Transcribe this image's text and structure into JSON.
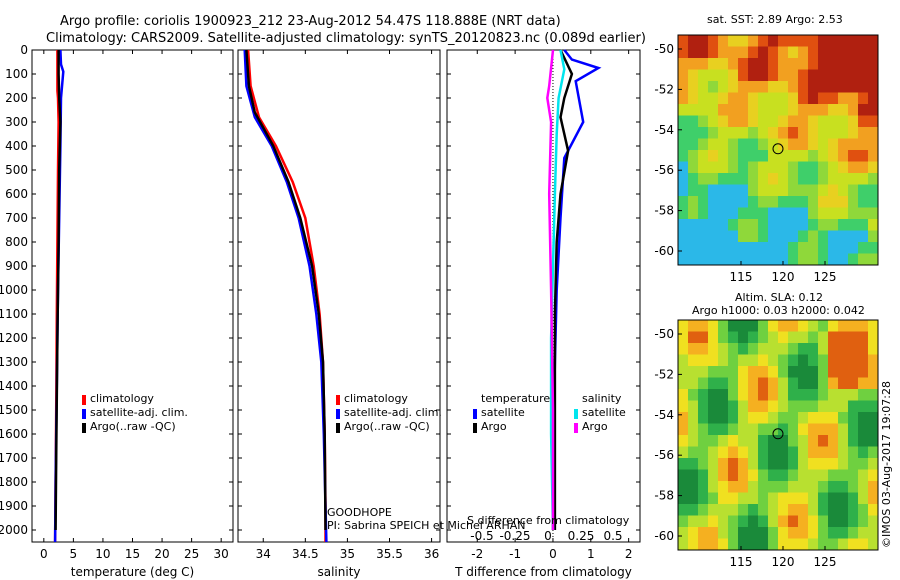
{
  "header": {
    "title_line1": "Argo profile: coriolis 1900923_212 23-Aug-2012 54.47S 118.888E (NRT data)",
    "title_line2": "Climatology: CARS2009. Satellite-adjusted climatology: synTS_20120823.nc (0.089d earlier)"
  },
  "maps": {
    "sst_title": "sat. SST: 2.89 Argo: 2.53",
    "sla_title1": "Altim. SLA: 0.12",
    "sla_title2": "Argo h1000: 0.03 h2000: 0.042",
    "credit": "©IMOS 03-Aug-2017 19:07:28",
    "lat_ticks": [
      "-50",
      "-52",
      "-54",
      "-56",
      "-58",
      "-60"
    ],
    "lon_ticks": [
      "115",
      "120",
      "125"
    ],
    "float_lat": -54.47,
    "float_lon": 118.888
  },
  "annotations": {
    "project": "GOODHOPE",
    "pi": "PI: Sabrina SPEICH et Michel ARHAN",
    "sdiff_label": "S difference from climatology",
    "sdiff_ticks": [
      "-0.5",
      "-0.25",
      "0",
      "0.25",
      "0.5"
    ]
  },
  "legend": {
    "climatology": "climatology",
    "satellite": "satellite-adj. clim.",
    "argo": "Argo(..raw -QC)",
    "temperature_head": "temperature",
    "salinity_head": "salinity",
    "sat_short": "satellite",
    "argo_short": "Argo"
  },
  "colors": {
    "climatology": "#ff0000",
    "satellite": "#0000ff",
    "argo": "#000000",
    "sal_satellite": "#00e5ee",
    "sal_argo": "#ff00ff"
  },
  "chart_data": [
    {
      "type": "line",
      "xlabel": "temperature (deg C)",
      "ylabel": "",
      "xlim": [
        -2,
        32
      ],
      "ylim": [
        2050,
        0
      ],
      "x_ticks": [
        "0",
        "5",
        "10",
        "15",
        "20",
        "25",
        "30"
      ],
      "y_ticks": [
        "0",
        "100",
        "200",
        "300",
        "400",
        "500",
        "600",
        "700",
        "800",
        "900",
        "1000",
        "1100",
        "1200",
        "1300",
        "1400",
        "1500",
        "1600",
        "1700",
        "1800",
        "1900",
        "2000"
      ],
      "series": [
        {
          "name": "climatology",
          "color": "#ff0000",
          "x": [
            2.3,
            2.3,
            2.4,
            2.5,
            2.4,
            2.3,
            2.2,
            2.1,
            2.0,
            1.9
          ],
          "y": [
            0,
            170,
            200,
            300,
            500,
            800,
            1100,
            1500,
            1800,
            2050
          ]
        },
        {
          "name": "satellite-adj. clim.",
          "color": "#0000ff",
          "x": [
            2.8,
            2.9,
            3.3,
            2.9,
            2.8,
            2.6,
            2.4,
            2.2,
            2.0,
            1.9
          ],
          "y": [
            0,
            60,
            90,
            200,
            400,
            700,
            1000,
            1400,
            1800,
            2050
          ]
        },
        {
          "name": "Argo(..raw -QC)",
          "color": "#000000",
          "x": [
            2.5,
            2.5,
            2.6,
            2.8,
            2.6,
            2.5,
            2.3,
            2.1,
            2.0
          ],
          "y": [
            0,
            100,
            200,
            300,
            500,
            800,
            1200,
            1700,
            2000
          ]
        }
      ]
    },
    {
      "type": "line",
      "xlabel": "salinity",
      "xlim": [
        33.7,
        36.1
      ],
      "ylim": [
        2050,
        0
      ],
      "x_ticks": [
        "34",
        "34.5",
        "35",
        "35.5",
        "36"
      ],
      "series": [
        {
          "name": "climatology",
          "color": "#ff0000",
          "x": [
            33.82,
            33.85,
            33.95,
            34.15,
            34.35,
            34.5,
            34.6,
            34.67,
            34.71,
            34.73,
            34.74,
            34.74
          ],
          "y": [
            0,
            150,
            280,
            400,
            550,
            700,
            900,
            1100,
            1300,
            1600,
            1900,
            2050
          ]
        },
        {
          "name": "satellite-adj. clim.",
          "color": "#0000ff",
          "x": [
            33.78,
            33.8,
            33.9,
            34.1,
            34.28,
            34.42,
            34.55,
            34.63,
            34.69,
            34.72,
            34.74,
            34.75
          ],
          "y": [
            0,
            150,
            280,
            400,
            550,
            700,
            900,
            1100,
            1300,
            1600,
            1900,
            2050
          ]
        },
        {
          "name": "Argo(..raw -QC)",
          "color": "#000000",
          "x": [
            33.8,
            33.83,
            33.9,
            34.12,
            34.3,
            34.44,
            34.58,
            34.66,
            34.71,
            34.73,
            34.74
          ],
          "y": [
            0,
            150,
            260,
            400,
            550,
            700,
            900,
            1100,
            1300,
            1600,
            2000
          ]
        }
      ]
    },
    {
      "type": "line",
      "xlabel": "T difference from climatology",
      "xlim": [
        -2.8,
        2.3
      ],
      "ylim": [
        2050,
        0
      ],
      "x_ticks": [
        "-2",
        "-1",
        "0",
        "1",
        "2"
      ],
      "series": [
        {
          "name": "satellite (temperature)",
          "color": "#0000ff",
          "x": [
            0.3,
            0.5,
            1.2,
            0.6,
            0.8,
            0.3,
            0.2,
            0.1,
            0.05,
            0.0,
            0.0
          ],
          "y": [
            0,
            40,
            75,
            130,
            300,
            450,
            700,
            1000,
            1300,
            1700,
            2000
          ]
        },
        {
          "name": "Argo (temperature)",
          "color": "#000000",
          "x": [
            0.2,
            0.5,
            0.3,
            0.2,
            0.4,
            0.2,
            0.1,
            0.05,
            0.05,
            0.05
          ],
          "y": [
            0,
            100,
            200,
            280,
            420,
            600,
            800,
            1100,
            1500,
            2000
          ]
        },
        {
          "name": "satellite (salinity)",
          "color": "#00e5ee",
          "x": [
            0.2,
            0.3,
            0.15,
            0.1,
            0.05,
            0.0,
            -0.05,
            -0.05,
            0.0
          ],
          "y": [
            0,
            80,
            200,
            350,
            600,
            900,
            1200,
            1600,
            2000
          ]
        },
        {
          "name": "Argo (salinity)",
          "color": "#ff00ff",
          "x": [
            0.0,
            -0.1,
            -0.15,
            -0.05,
            -0.1,
            -0.05,
            0.0,
            0.0
          ],
          "y": [
            0,
            150,
            200,
            300,
            600,
            1000,
            1500,
            2000
          ]
        }
      ]
    }
  ]
}
